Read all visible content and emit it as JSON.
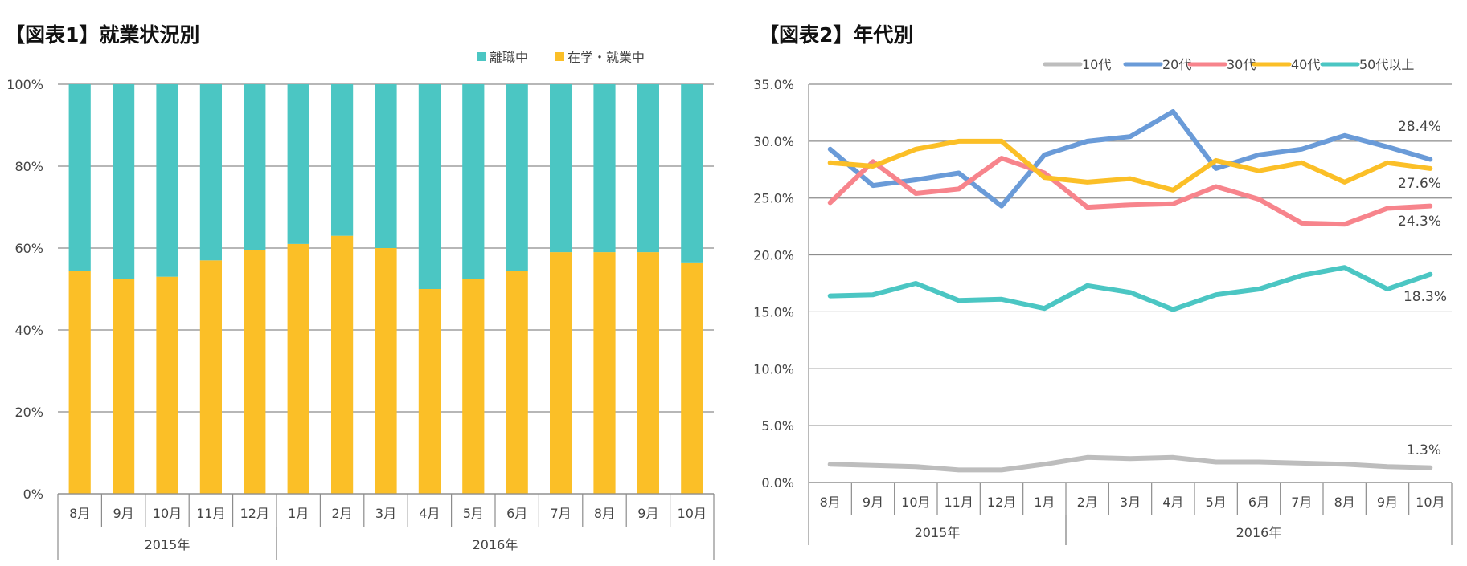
{
  "chart_data": [
    {
      "type": "bar",
      "stacked": true,
      "title": "【図表1】就業状況別",
      "categories": [
        "8月",
        "9月",
        "10月",
        "11月",
        "12月",
        "1月",
        "2月",
        "3月",
        "4月",
        "5月",
        "6月",
        "7月",
        "8月",
        "9月",
        "10月"
      ],
      "year_groups": [
        {
          "label": "2015年",
          "start": 0,
          "end": 4
        },
        {
          "label": "2016年",
          "start": 5,
          "end": 14
        }
      ],
      "series": [
        {
          "name": "在学・就業中",
          "color": "#FBBF27",
          "values": [
            54.5,
            52.5,
            53,
            57,
            59.5,
            61,
            63,
            60,
            50,
            52.5,
            54.5,
            59,
            59,
            59,
            56.5
          ]
        },
        {
          "name": "離職中",
          "color": "#4BC6C3",
          "values": [
            45.5,
            47.5,
            47,
            43,
            40.5,
            39,
            37,
            40,
            50,
            47.5,
            45.5,
            41,
            41,
            41,
            43.5
          ]
        }
      ],
      "legend": [
        {
          "name": "離職中",
          "color": "#4BC6C3"
        },
        {
          "name": "在学・就業中",
          "color": "#FBBF27"
        }
      ],
      "y_ticks": [
        "0%",
        "20%",
        "40%",
        "60%",
        "80%",
        "100%"
      ],
      "ylim": [
        0,
        100
      ]
    },
    {
      "type": "line",
      "title": "【図表2】年代別",
      "categories": [
        "8月",
        "9月",
        "10月",
        "11月",
        "12月",
        "1月",
        "2月",
        "3月",
        "4月",
        "5月",
        "6月",
        "7月",
        "8月",
        "9月",
        "10月"
      ],
      "year_groups": [
        {
          "label": "2015年",
          "start": 0,
          "end": 5
        },
        {
          "label": "2016年",
          "start": 6,
          "end": 14
        }
      ],
      "series": [
        {
          "name": "10代",
          "color": "#BDBDBD",
          "values": [
            1.6,
            1.5,
            1.4,
            1.1,
            1.1,
            1.6,
            2.2,
            2.1,
            2.2,
            1.8,
            1.8,
            1.7,
            1.6,
            1.4,
            1.3
          ],
          "end_label": "1.3%"
        },
        {
          "name": "20代",
          "color": "#6A9BD8",
          "values": [
            29.3,
            26.1,
            26.6,
            27.2,
            24.3,
            28.8,
            30.0,
            30.4,
            32.6,
            27.6,
            28.8,
            29.3,
            30.5,
            29.5,
            28.4
          ],
          "end_label": "28.4%"
        },
        {
          "name": "30代",
          "color": "#F7848C",
          "values": [
            24.6,
            28.2,
            25.4,
            25.8,
            28.5,
            27.2,
            24.2,
            24.4,
            24.5,
            26.0,
            24.9,
            22.8,
            22.7,
            24.1,
            24.3
          ],
          "end_label": "24.3%"
        },
        {
          "name": "40代",
          "color": "#FBBF27",
          "values": [
            28.1,
            27.8,
            29.3,
            30.0,
            30.0,
            26.8,
            26.4,
            26.7,
            25.7,
            28.3,
            27.4,
            28.1,
            26.4,
            28.1,
            27.6
          ],
          "end_label": "27.6%"
        },
        {
          "name": "50代以上",
          "color": "#4BC6C3",
          "values": [
            16.4,
            16.5,
            17.5,
            16.0,
            16.1,
            15.3,
            17.3,
            16.7,
            15.2,
            16.5,
            17.0,
            18.2,
            18.9,
            17.0,
            18.3
          ],
          "end_label": "18.3%"
        }
      ],
      "y_ticks": [
        "0.0%",
        "5.0%",
        "10.0%",
        "15.0%",
        "20.0%",
        "25.0%",
        "30.0%",
        "35.0%"
      ],
      "ylim": [
        0,
        35
      ]
    }
  ]
}
